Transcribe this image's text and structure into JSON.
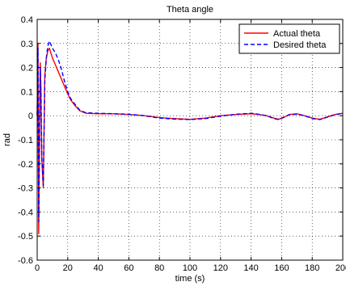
{
  "chart_data": {
    "type": "line",
    "title": "Theta angle",
    "xlabel": "time (s)",
    "ylabel": "rad",
    "xlim": [
      0,
      200
    ],
    "ylim": [
      -0.6,
      0.4
    ],
    "xticks": [
      0,
      20,
      40,
      60,
      80,
      100,
      120,
      140,
      160,
      180,
      200
    ],
    "yticks": [
      -0.6,
      -0.5,
      -0.4,
      -0.3,
      -0.2,
      -0.1,
      0,
      0.1,
      0.2,
      0.3,
      0.4
    ],
    "grid": true,
    "legend_position": "top-right",
    "series": [
      {
        "name": "Actual theta",
        "color": "#ff0000",
        "style": "solid",
        "x": [
          0,
          0.5,
          1,
          1.5,
          2,
          2.5,
          3,
          4,
          5,
          6,
          7,
          8,
          10,
          12,
          14,
          16,
          18,
          20,
          22,
          25,
          28,
          32,
          40,
          50,
          60,
          70,
          80,
          90,
          100,
          110,
          120,
          130,
          140,
          145,
          150,
          155,
          158,
          162,
          165,
          170,
          175,
          180,
          185,
          190,
          195,
          200
        ],
        "y": [
          0,
          0.3,
          -0.49,
          -0.1,
          0.22,
          0.1,
          -0.18,
          -0.3,
          0.17,
          0.24,
          0.27,
          0.28,
          0.24,
          0.21,
          0.18,
          0.15,
          0.12,
          0.09,
          0.065,
          0.04,
          0.02,
          0.01,
          0.008,
          0.008,
          0.005,
          0.0,
          -0.008,
          -0.012,
          -0.015,
          -0.01,
          0.0,
          0.005,
          0.008,
          0.005,
          0.0,
          -0.01,
          -0.015,
          -0.005,
          0.005,
          0.008,
          0.0,
          -0.01,
          -0.015,
          -0.005,
          0.005,
          0.01
        ]
      },
      {
        "name": "Desired theta",
        "color": "#0000ff",
        "style": "dashed",
        "x": [
          0,
          0.5,
          1,
          1.5,
          2,
          2.5,
          3,
          4,
          5,
          6,
          7,
          8,
          10,
          12,
          14,
          16,
          18,
          20,
          22,
          25,
          28,
          32,
          40,
          50,
          60,
          70,
          80,
          90,
          100,
          110,
          120,
          130,
          140,
          145,
          150,
          155,
          158,
          162,
          165,
          170,
          175,
          180,
          185,
          190,
          195,
          200
        ],
        "y": [
          0,
          0.28,
          -0.44,
          -0.08,
          0.2,
          0.08,
          -0.17,
          -0.29,
          0.15,
          0.24,
          0.29,
          0.31,
          0.28,
          0.26,
          0.23,
          0.19,
          0.14,
          0.1,
          0.07,
          0.045,
          0.022,
          0.012,
          0.01,
          0.008,
          0.006,
          0.0,
          -0.01,
          -0.014,
          -0.016,
          -0.012,
          -0.002,
          0.006,
          0.01,
          0.006,
          0.0,
          -0.012,
          -0.016,
          -0.006,
          0.004,
          0.006,
          0.0,
          -0.012,
          -0.016,
          -0.006,
          0.004,
          0.01
        ]
      }
    ]
  }
}
